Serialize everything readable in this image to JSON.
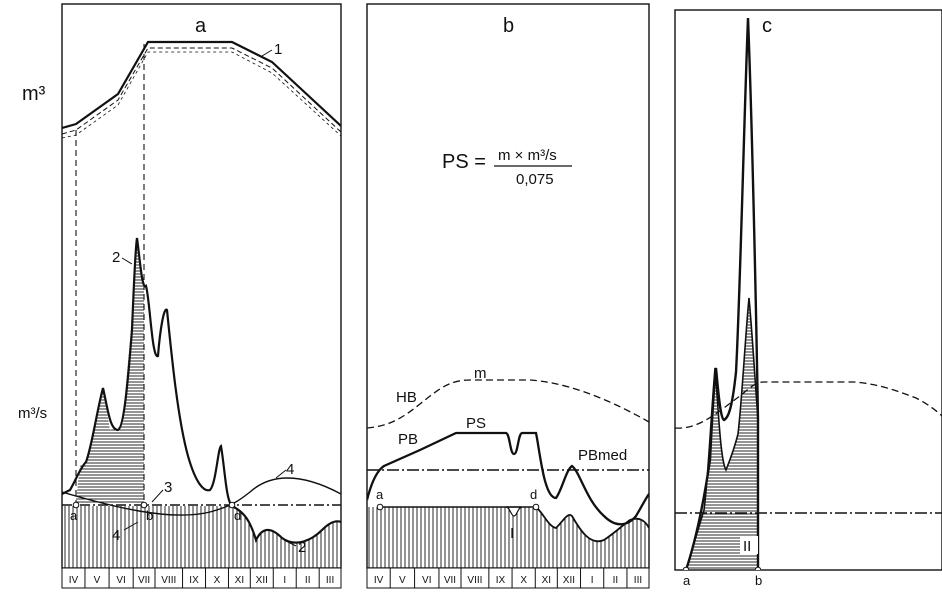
{
  "panels": {
    "a": {
      "title": "a",
      "curve_labels": [
        "1",
        "2",
        "3",
        "4",
        "4",
        "2"
      ],
      "point_labels": [
        "a",
        "b",
        "d"
      ],
      "months": [
        "IV",
        "V",
        "VI",
        "VII",
        "VIII",
        "IX",
        "X",
        "XI",
        "XII",
        "I",
        "II",
        "III"
      ]
    },
    "b": {
      "title": "b",
      "formula_lhs": "PS =",
      "formula_num": "m × m³/s",
      "formula_den": "0,075",
      "labels": {
        "m": "m",
        "hb": "HB",
        "pb": "PB",
        "ps": "PS",
        "pbmed": "PBmed",
        "roman": "I",
        "pa": "a",
        "pd": "d"
      },
      "months": [
        "IV",
        "V",
        "VI",
        "VII",
        "VIII",
        "IX",
        "X",
        "XI",
        "XII",
        "I",
        "II",
        "III"
      ]
    },
    "c": {
      "title": "c",
      "roman": "II",
      "point_labels": [
        "a",
        "b"
      ]
    }
  },
  "axis_units": {
    "volume": "m³",
    "flow": "m³/s"
  }
}
